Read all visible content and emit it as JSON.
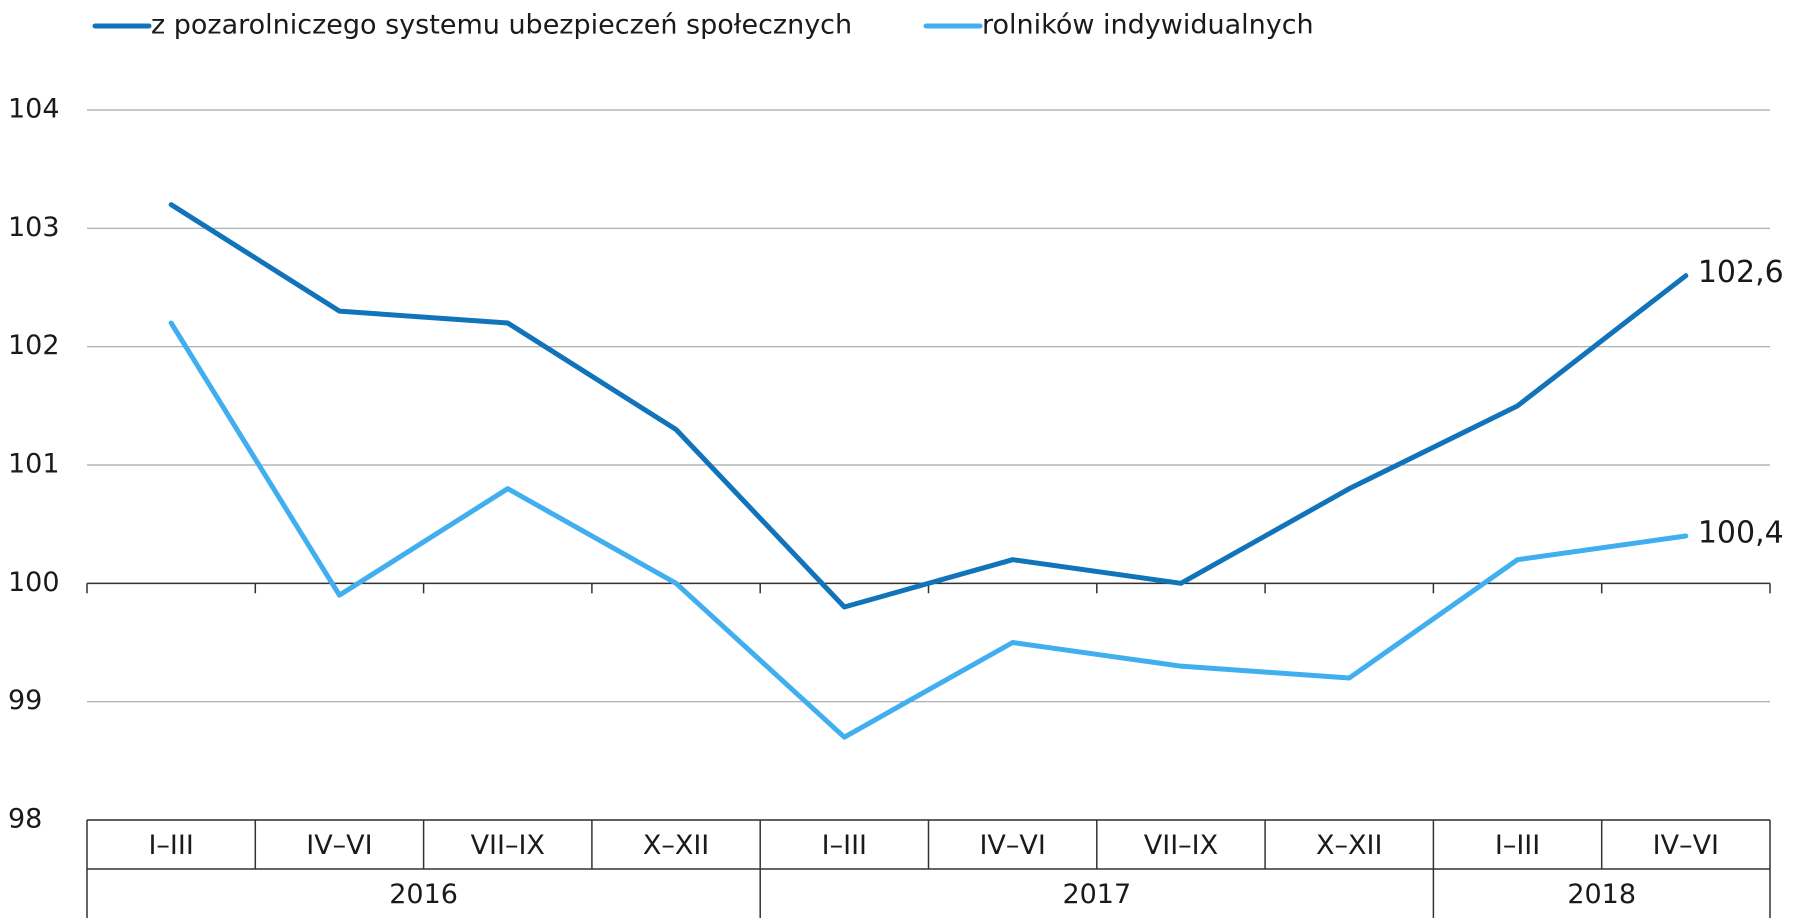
{
  "chart_data": {
    "type": "line",
    "categories": [
      "I–III",
      "IV–VI",
      "VII–IX",
      "X–XII",
      "I–III",
      "IV–VI",
      "VII–IX",
      "X–XII",
      "I–III",
      "IV–VI"
    ],
    "year_groups": [
      {
        "label": "2016",
        "span": 4
      },
      {
        "label": "2017",
        "span": 4
      },
      {
        "label": "2018",
        "span": 2
      }
    ],
    "series": [
      {
        "name": "z pozarolniczego systemu ubezpieczeń społecznych",
        "color": "#1174bb",
        "values": [
          103.2,
          102.3,
          102.2,
          101.3,
          99.8,
          100.2,
          100.0,
          100.8,
          101.5,
          102.6
        ],
        "value_labels": [
          null,
          null,
          null,
          null,
          null,
          null,
          null,
          null,
          null,
          "102,6"
        ]
      },
      {
        "name": "rolników indywidualnych",
        "color": "#41aef0",
        "values": [
          102.2,
          99.9,
          100.8,
          100.0,
          98.7,
          99.5,
          99.3,
          99.2,
          100.2,
          100.4
        ],
        "value_labels": [
          null,
          null,
          null,
          null,
          null,
          null,
          null,
          null,
          null,
          "100,4"
        ]
      }
    ],
    "ylim": [
      98,
      104
    ],
    "yticks": [
      98,
      99,
      100,
      101,
      102,
      103,
      104
    ],
    "grid": true,
    "axis_value": 100
  }
}
